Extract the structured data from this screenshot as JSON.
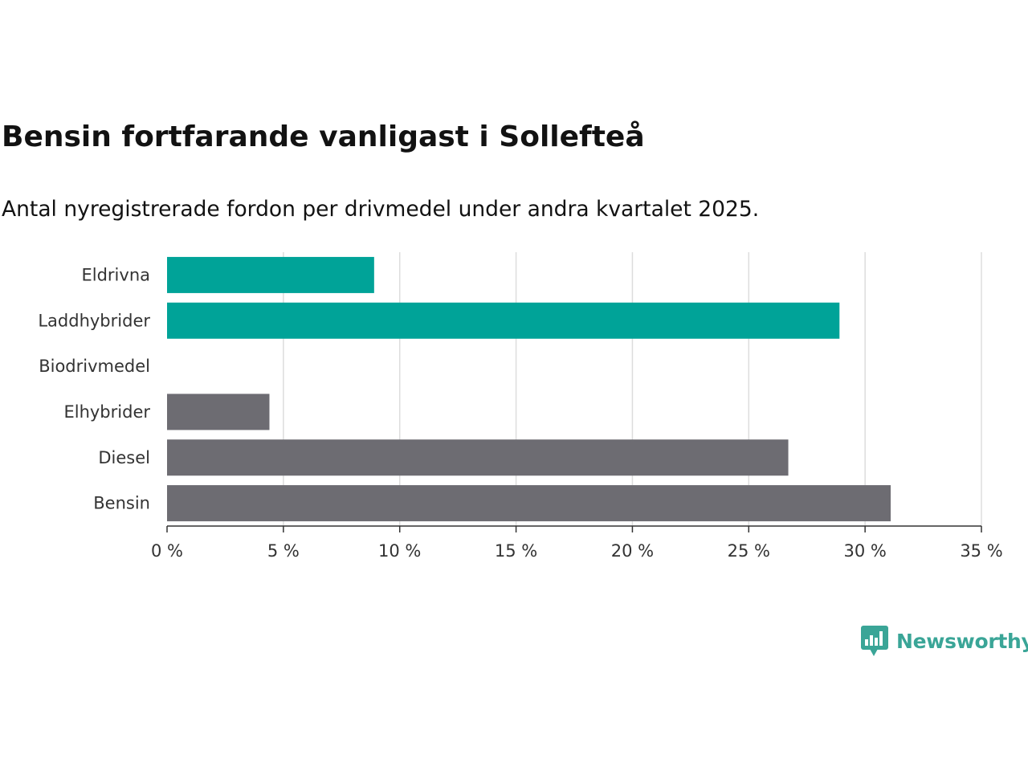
{
  "chart_data": {
    "type": "bar",
    "orientation": "horizontal",
    "title": "Bensin fortfarande vanligast i Sollefteå",
    "subtitle": "Antal nyregistrerade fordon per drivmedel under andra kvartalet 2025.",
    "categories": [
      "Eldrivna",
      "Laddhybrider",
      "Biodrivmedel",
      "Elhybrider",
      "Diesel",
      "Bensin"
    ],
    "values": [
      8.9,
      28.9,
      0,
      4.4,
      26.7,
      31.1
    ],
    "bar_colors": [
      "#00a398",
      "#00a398",
      "#00a398",
      "#6d6c72",
      "#6d6c72",
      "#6d6c72"
    ],
    "xlim": [
      0,
      35
    ],
    "xticks": [
      0,
      5,
      10,
      15,
      20,
      25,
      30,
      35
    ],
    "xtick_labels": [
      "0 %",
      "5 %",
      "10 %",
      "15 %",
      "20 %",
      "25 %",
      "30 %",
      "35 %"
    ],
    "grid": true,
    "legend": "none"
  },
  "brand": {
    "name": "Newsworthy",
    "logo_icon": "newsworthy-chart-bubble-icon",
    "color": "#3aa597"
  }
}
